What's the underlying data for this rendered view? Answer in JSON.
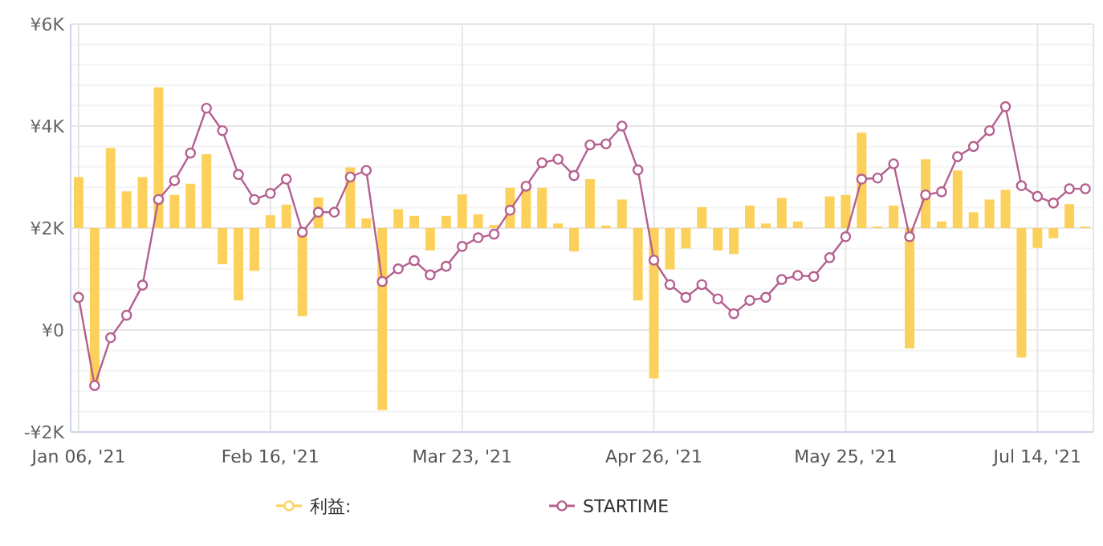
{
  "chart_data": {
    "type": "bar",
    "categories": [
      "Jan 06, '21",
      null,
      null,
      null,
      null,
      null,
      null,
      null,
      null,
      null,
      null,
      null,
      "Feb 16, '21",
      null,
      null,
      null,
      null,
      null,
      null,
      null,
      null,
      null,
      null,
      null,
      "Mar 23, '21",
      null,
      null,
      null,
      null,
      null,
      null,
      null,
      null,
      null,
      null,
      null,
      "Apr 26, '21",
      null,
      null,
      null,
      null,
      null,
      null,
      null,
      null,
      null,
      null,
      null,
      "May 25, '21",
      null,
      null,
      null,
      null,
      null,
      null,
      null,
      null,
      null,
      null,
      null,
      "Jul 14, '21",
      null,
      null,
      null
    ],
    "ylim": [
      -2000,
      6000
    ],
    "yticks": [
      {
        "value": -2000,
        "label": "-¥2K"
      },
      {
        "value": -1600,
        "label": null
      },
      {
        "value": -1200,
        "label": null
      },
      {
        "value": -800,
        "label": null
      },
      {
        "value": -400,
        "label": null
      },
      {
        "value": 0,
        "label": "¥0"
      },
      {
        "value": 400,
        "label": null
      },
      {
        "value": 800,
        "label": null
      },
      {
        "value": 1200,
        "label": null
      },
      {
        "value": 1600,
        "label": null
      },
      {
        "value": 2000,
        "label": "¥2K"
      },
      {
        "value": 2400,
        "label": null
      },
      {
        "value": 2800,
        "label": null
      },
      {
        "value": 3200,
        "label": null
      },
      {
        "value": 3600,
        "label": null
      },
      {
        "value": 4000,
        "label": "¥4K"
      },
      {
        "value": 4400,
        "label": null
      },
      {
        "value": 4800,
        "label": null
      },
      {
        "value": 5200,
        "label": null
      },
      {
        "value": 5600,
        "label": null
      },
      {
        "value": 6000,
        "label": "¥6K"
      }
    ],
    "grid": true,
    "legend": "bottom",
    "marker": "circle",
    "series": [
      {
        "name": "利益:",
        "color": "#fcd15b",
        "base": [
          2000,
          2000,
          2000,
          2000,
          2000,
          2000,
          2000,
          2000,
          2000,
          2000,
          2000,
          2000,
          2000,
          2000,
          2000,
          2000,
          null,
          2000,
          2000,
          2000,
          2000,
          2000,
          2000,
          2000,
          2000,
          2000,
          2000,
          2000,
          2000,
          2000,
          2000,
          2000,
          2000,
          2000,
          2000,
          2000,
          2000,
          2000,
          2000,
          2000,
          2000,
          2000,
          2000,
          2000,
          2000,
          2000,
          null,
          2000,
          2000,
          2000,
          2000,
          2000,
          2000,
          2000,
          2000,
          2000,
          2000,
          2000,
          2000,
          2000,
          2000,
          2000,
          2000,
          2000
        ],
        "values": [
          1000,
          -3070,
          1570,
          720,
          1000,
          2760,
          650,
          870,
          1450,
          -710,
          -1420,
          -840,
          250,
          460,
          -1730,
          600,
          null,
          1190,
          190,
          -3570,
          370,
          240,
          -440,
          240,
          660,
          270,
          60,
          790,
          850,
          790,
          90,
          -460,
          960,
          50,
          560,
          -1420,
          -2950,
          -810,
          -400,
          410,
          -440,
          -510,
          440,
          90,
          590,
          130,
          null,
          620,
          650,
          1870,
          30,
          440,
          -2360,
          1350,
          130,
          1130,
          310,
          560,
          750,
          -2540,
          -390,
          -200,
          470,
          30
        ]
      },
      {
        "name": "STARTIME",
        "type": "line",
        "color": "#b5608f",
        "values": [
          640,
          -1090,
          -150,
          290,
          880,
          2560,
          2930,
          3470,
          4350,
          3910,
          3050,
          2560,
          2680,
          2960,
          1920,
          2310,
          2310,
          3000,
          3130,
          950,
          1200,
          1360,
          1080,
          1250,
          1640,
          1810,
          1880,
          2350,
          2820,
          3280,
          3350,
          3030,
          3630,
          3650,
          4000,
          3140,
          1370,
          890,
          640,
          890,
          610,
          320,
          580,
          640,
          990,
          1070,
          1050,
          1420,
          1830,
          2960,
          2980,
          3260,
          1830,
          2650,
          2710,
          3400,
          3600,
          3910,
          4380,
          2830,
          2620,
          2490,
          2770,
          2770
        ]
      }
    ]
  }
}
